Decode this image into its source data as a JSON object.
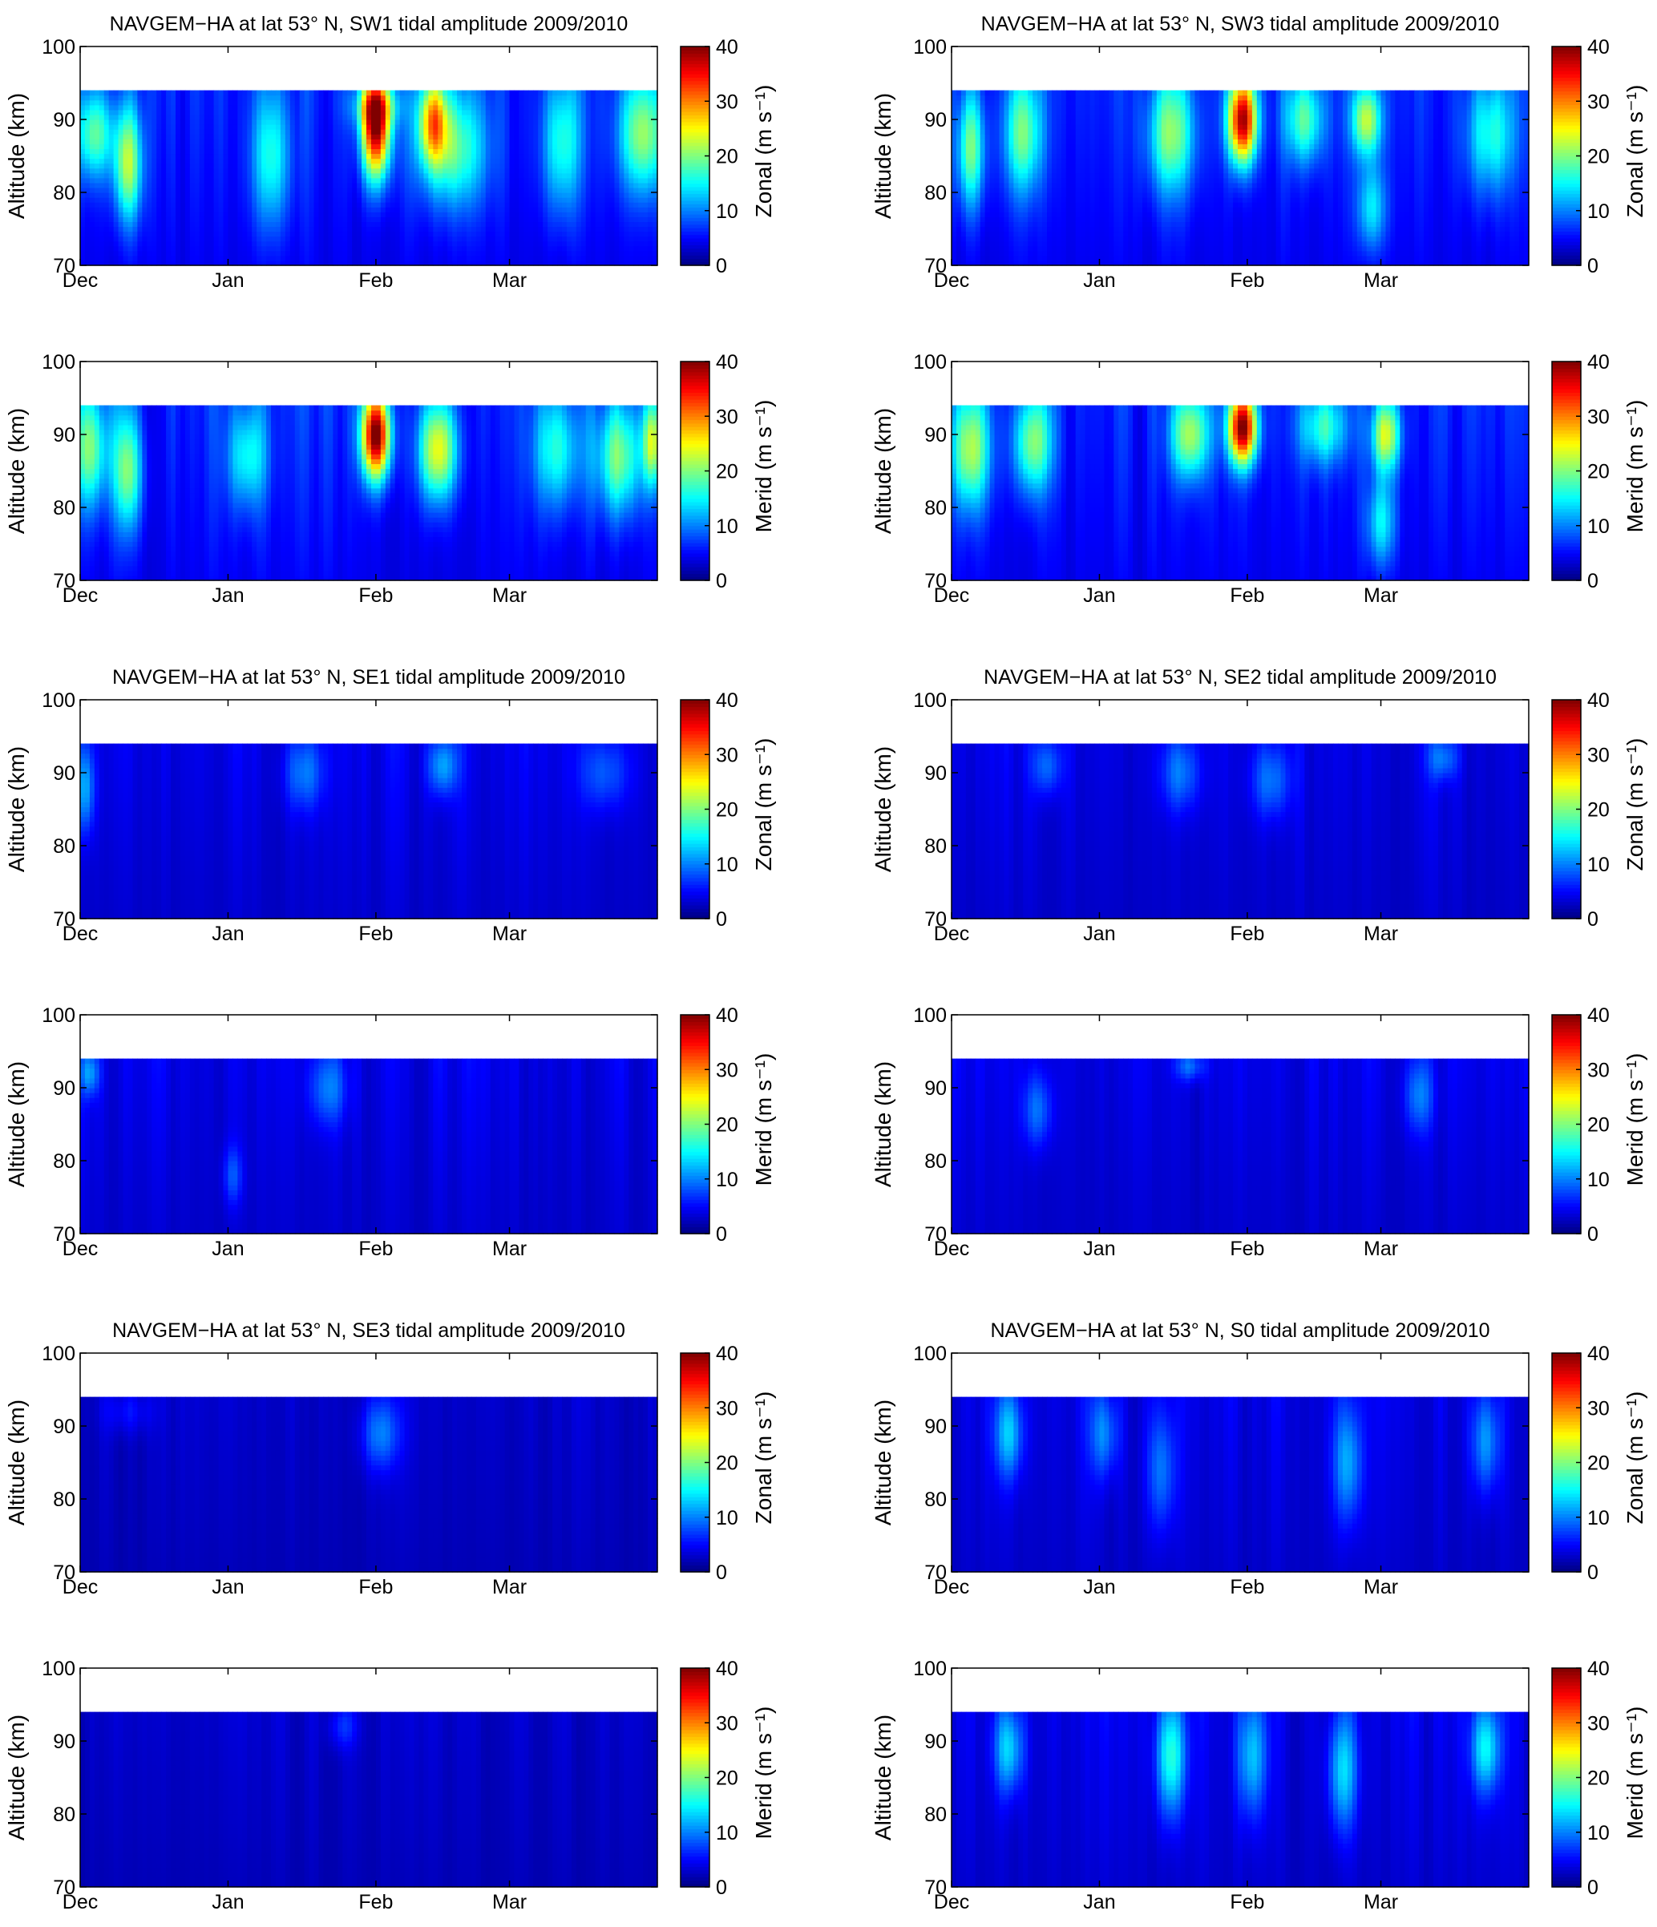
{
  "figure": {
    "colormap": "jet",
    "background": "#ffffff"
  },
  "chart_data": [
    {
      "type": "heatmap",
      "title": "NAVGEM−HA at lat 53° N, SW1 tidal amplitude 2009/2010",
      "ylabel": "Altitude  (km)",
      "colorbar_label": "Zonal  (m s⁻¹)",
      "x_ticks": [
        "Dec",
        "Jan",
        "Feb",
        "Mar"
      ],
      "y_ticks": [
        "70",
        "80",
        "90",
        "100"
      ],
      "ylim": [
        70,
        100
      ],
      "data_top_km": 94,
      "colorbar_ticks": [
        "0",
        "10",
        "20",
        "30",
        "40"
      ],
      "clim": [
        0,
        40
      ],
      "base_amplitude": 6,
      "peaks": [
        {
          "day": 10,
          "alt_km": 84,
          "amp": 17,
          "width_days": 3,
          "height_km": 8
        },
        {
          "day": 3,
          "alt_km": 88,
          "amp": 13,
          "width_days": 4,
          "height_km": 6
        },
        {
          "day": 40,
          "alt_km": 85,
          "amp": 11,
          "width_days": 4,
          "height_km": 10
        },
        {
          "day": 62,
          "alt_km": 89,
          "amp": 34,
          "width_days": 3,
          "height_km": 7
        },
        {
          "day": 62,
          "alt_km": 92,
          "amp": 10,
          "width_days": 5,
          "height_km": 3
        },
        {
          "day": 74,
          "alt_km": 90,
          "amp": 20,
          "width_days": 3,
          "height_km": 6
        },
        {
          "day": 78,
          "alt_km": 86,
          "amp": 13,
          "width_days": 7,
          "height_km": 8
        },
        {
          "day": 101,
          "alt_km": 87,
          "amp": 12,
          "width_days": 4,
          "height_km": 10
        },
        {
          "day": 118,
          "alt_km": 88,
          "amp": 15,
          "width_days": 5,
          "height_km": 8
        }
      ]
    },
    {
      "type": "heatmap",
      "title": "NAVGEM−HA at lat 53° N, SW3 tidal amplitude 2009/2010",
      "ylabel": "Altitude  (km)",
      "colorbar_label": "Zonal  (m s⁻¹)",
      "x_ticks": [
        "Dec",
        "Jan",
        "Feb",
        "Mar"
      ],
      "y_ticks": [
        "70",
        "80",
        "90",
        "100"
      ],
      "ylim": [
        70,
        100
      ],
      "data_top_km": 94,
      "colorbar_ticks": [
        "0",
        "10",
        "20",
        "30",
        "40"
      ],
      "clim": [
        0,
        40
      ],
      "base_amplitude": 6,
      "peaks": [
        {
          "day": 4,
          "alt_km": 86,
          "amp": 14,
          "width_days": 3,
          "height_km": 8
        },
        {
          "day": 15,
          "alt_km": 88,
          "amp": 13,
          "width_days": 4,
          "height_km": 8
        },
        {
          "day": 46,
          "alt_km": 88,
          "amp": 14,
          "width_days": 5,
          "height_km": 8
        },
        {
          "day": 61,
          "alt_km": 90,
          "amp": 34,
          "width_days": 3,
          "height_km": 6
        },
        {
          "day": 74,
          "alt_km": 90,
          "amp": 13,
          "width_days": 4,
          "height_km": 6
        },
        {
          "day": 87,
          "alt_km": 90,
          "amp": 18,
          "width_days": 3,
          "height_km": 5
        },
        {
          "day": 88,
          "alt_km": 78,
          "amp": 10,
          "width_days": 3,
          "height_km": 6
        },
        {
          "day": 113,
          "alt_km": 88,
          "amp": 11,
          "width_days": 5,
          "height_km": 8
        }
      ]
    },
    {
      "type": "heatmap",
      "title": "",
      "ylabel": "Altitude  (km)",
      "colorbar_label": "Merid  (m s⁻¹)",
      "x_ticks": [
        "Dec",
        "Jan",
        "Feb",
        "Mar"
      ],
      "y_ticks": [
        "70",
        "80",
        "90",
        "100"
      ],
      "ylim": [
        70,
        100
      ],
      "data_top_km": 94,
      "colorbar_ticks": [
        "0",
        "10",
        "20",
        "30",
        "40"
      ],
      "clim": [
        0,
        40
      ],
      "base_amplitude": 6,
      "peaks": [
        {
          "day": 2,
          "alt_km": 88,
          "amp": 14,
          "width_days": 4,
          "height_km": 8
        },
        {
          "day": 10,
          "alt_km": 85,
          "amp": 14,
          "width_days": 3,
          "height_km": 8
        },
        {
          "day": 35,
          "alt_km": 87,
          "amp": 10,
          "width_days": 4,
          "height_km": 7
        },
        {
          "day": 62,
          "alt_km": 90,
          "amp": 36,
          "width_days": 3,
          "height_km": 6
        },
        {
          "day": 75,
          "alt_km": 88,
          "amp": 20,
          "width_days": 4,
          "height_km": 7
        },
        {
          "day": 100,
          "alt_km": 88,
          "amp": 11,
          "width_days": 5,
          "height_km": 8
        },
        {
          "day": 113,
          "alt_km": 87,
          "amp": 15,
          "width_days": 5,
          "height_km": 8
        },
        {
          "day": 120,
          "alt_km": 89,
          "amp": 16,
          "width_days": 2,
          "height_km": 6
        }
      ]
    },
    {
      "type": "heatmap",
      "title": "",
      "ylabel": "Altitude  (km)",
      "colorbar_label": "Merid  (m s⁻¹)",
      "x_ticks": [
        "Dec",
        "Jan",
        "Feb",
        "Mar"
      ],
      "y_ticks": [
        "70",
        "80",
        "90",
        "100"
      ],
      "ylim": [
        70,
        100
      ],
      "data_top_km": 94,
      "colorbar_ticks": [
        "0",
        "10",
        "20",
        "30",
        "40"
      ],
      "clim": [
        0,
        40
      ],
      "base_amplitude": 6,
      "peaks": [
        {
          "day": 4,
          "alt_km": 88,
          "amp": 16,
          "width_days": 4,
          "height_km": 8
        },
        {
          "day": 17,
          "alt_km": 89,
          "amp": 15,
          "width_days": 4,
          "height_km": 7
        },
        {
          "day": 50,
          "alt_km": 90,
          "amp": 16,
          "width_days": 4,
          "height_km": 6
        },
        {
          "day": 61,
          "alt_km": 91,
          "amp": 34,
          "width_days": 3,
          "height_km": 5
        },
        {
          "day": 78,
          "alt_km": 91,
          "amp": 11,
          "width_days": 5,
          "height_km": 5
        },
        {
          "day": 91,
          "alt_km": 90,
          "amp": 18,
          "width_days": 3,
          "height_km": 5
        },
        {
          "day": 90,
          "alt_km": 78,
          "amp": 10,
          "width_days": 3,
          "height_km": 6
        }
      ]
    },
    {
      "type": "heatmap",
      "title": "NAVGEM−HA at lat 53° N, SE1 tidal amplitude 2009/2010",
      "ylabel": "Altitude  (km)",
      "colorbar_label": "Zonal  (m s⁻¹)",
      "x_ticks": [
        "Dec",
        "Jan",
        "Feb",
        "Mar"
      ],
      "y_ticks": [
        "70",
        "80",
        "90",
        "100"
      ],
      "ylim": [
        70,
        100
      ],
      "data_top_km": 94,
      "colorbar_ticks": [
        "0",
        "10",
        "20",
        "30",
        "40"
      ],
      "clim": [
        0,
        40
      ],
      "base_amplitude": 4,
      "peaks": [
        {
          "day": 1,
          "alt_km": 88,
          "amp": 8,
          "width_days": 2,
          "height_km": 6
        },
        {
          "day": 47,
          "alt_km": 90,
          "amp": 6,
          "width_days": 4,
          "height_km": 5
        },
        {
          "day": 76,
          "alt_km": 91,
          "amp": 8,
          "width_days": 3,
          "height_km": 4
        },
        {
          "day": 110,
          "alt_km": 90,
          "amp": 5,
          "width_days": 5,
          "height_km": 5
        }
      ]
    },
    {
      "type": "heatmap",
      "title": "NAVGEM−HA at lat 53° N, SE2 tidal amplitude 2009/2010",
      "ylabel": "Altitude  (km)",
      "colorbar_label": "Zonal  (m s⁻¹)",
      "x_ticks": [
        "Dec",
        "Jan",
        "Feb",
        "Mar"
      ],
      "y_ticks": [
        "70",
        "80",
        "90",
        "100"
      ],
      "ylim": [
        70,
        100
      ],
      "data_top_km": 94,
      "colorbar_ticks": [
        "0",
        "10",
        "20",
        "30",
        "40"
      ],
      "clim": [
        0,
        40
      ],
      "base_amplitude": 4,
      "peaks": [
        {
          "day": 20,
          "alt_km": 91,
          "amp": 6,
          "width_days": 3,
          "height_km": 4
        },
        {
          "day": 48,
          "alt_km": 90,
          "amp": 6,
          "width_days": 4,
          "height_km": 5
        },
        {
          "day": 67,
          "alt_km": 89,
          "amp": 6,
          "width_days": 4,
          "height_km": 5
        },
        {
          "day": 103,
          "alt_km": 92,
          "amp": 6,
          "width_days": 3,
          "height_km": 3
        }
      ]
    },
    {
      "type": "heatmap",
      "title": "",
      "ylabel": "Altitude  (km)",
      "colorbar_label": "Merid  (m s⁻¹)",
      "x_ticks": [
        "Dec",
        "Jan",
        "Feb",
        "Mar"
      ],
      "y_ticks": [
        "70",
        "80",
        "90",
        "100"
      ],
      "ylim": [
        70,
        100
      ],
      "data_top_km": 94,
      "colorbar_ticks": [
        "0",
        "10",
        "20",
        "30",
        "40"
      ],
      "clim": [
        0,
        40
      ],
      "base_amplitude": 4,
      "peaks": [
        {
          "day": 2,
          "alt_km": 92,
          "amp": 7,
          "width_days": 2,
          "height_km": 3
        },
        {
          "day": 32,
          "alt_km": 78,
          "amp": 5,
          "width_days": 2,
          "height_km": 4
        },
        {
          "day": 52,
          "alt_km": 90,
          "amp": 6,
          "width_days": 4,
          "height_km": 5
        }
      ]
    },
    {
      "type": "heatmap",
      "title": "",
      "ylabel": "Altitude  (km)",
      "colorbar_label": "Merid  (m s⁻¹)",
      "x_ticks": [
        "Dec",
        "Jan",
        "Feb",
        "Mar"
      ],
      "y_ticks": [
        "70",
        "80",
        "90",
        "100"
      ],
      "ylim": [
        70,
        100
      ],
      "data_top_km": 94,
      "colorbar_ticks": [
        "0",
        "10",
        "20",
        "30",
        "40"
      ],
      "clim": [
        0,
        40
      ],
      "base_amplitude": 4,
      "peaks": [
        {
          "day": 18,
          "alt_km": 87,
          "amp": 6,
          "width_days": 3,
          "height_km": 5
        },
        {
          "day": 50,
          "alt_km": 93,
          "amp": 6,
          "width_days": 3,
          "height_km": 2
        },
        {
          "day": 98,
          "alt_km": 89,
          "amp": 6,
          "width_days": 3,
          "height_km": 5
        }
      ]
    },
    {
      "type": "heatmap",
      "title": "NAVGEM−HA at lat 53° N, SE3 tidal amplitude 2009/2010",
      "ylabel": "Altitude  (km)",
      "colorbar_label": "Zonal  (m s⁻¹)",
      "x_ticks": [
        "Dec",
        "Jan",
        "Feb",
        "Mar"
      ],
      "y_ticks": [
        "70",
        "80",
        "90",
        "100"
      ],
      "ylim": [
        70,
        100
      ],
      "data_top_km": 94,
      "colorbar_ticks": [
        "0",
        "10",
        "20",
        "30",
        "40"
      ],
      "clim": [
        0,
        40
      ],
      "base_amplitude": 3,
      "peaks": [
        {
          "day": 63,
          "alt_km": 89,
          "amp": 7,
          "width_days": 4,
          "height_km": 5
        },
        {
          "day": 10,
          "alt_km": 92,
          "amp": 3,
          "width_days": 5,
          "height_km": 3
        }
      ]
    },
    {
      "type": "heatmap",
      "title": "NAVGEM−HA at lat 53° N, S0 tidal amplitude 2009/2010",
      "ylabel": "Altitude  (km)",
      "colorbar_label": "Zonal  (m s⁻¹)",
      "x_ticks": [
        "Dec",
        "Jan",
        "Feb",
        "Mar"
      ],
      "y_ticks": [
        "70",
        "80",
        "90",
        "100"
      ],
      "ylim": [
        70,
        100
      ],
      "data_top_km": 94,
      "colorbar_ticks": [
        "0",
        "10",
        "20",
        "30",
        "40"
      ],
      "clim": [
        0,
        40
      ],
      "base_amplitude": 4,
      "peaks": [
        {
          "day": 12,
          "alt_km": 89,
          "amp": 9,
          "width_days": 3,
          "height_km": 6
        },
        {
          "day": 32,
          "alt_km": 89,
          "amp": 7,
          "width_days": 3,
          "height_km": 6
        },
        {
          "day": 44,
          "alt_km": 84,
          "amp": 6,
          "width_days": 3,
          "height_km": 8
        },
        {
          "day": 83,
          "alt_km": 85,
          "amp": 8,
          "width_days": 3,
          "height_km": 8
        },
        {
          "day": 112,
          "alt_km": 88,
          "amp": 8,
          "width_days": 3,
          "height_km": 7
        }
      ]
    },
    {
      "type": "heatmap",
      "title": "",
      "ylabel": "Altitude  (km)",
      "colorbar_label": "Merid  (m s⁻¹)",
      "x_ticks": [
        "Dec",
        "Jan",
        "Feb",
        "Mar"
      ],
      "y_ticks": [
        "70",
        "80",
        "90",
        "100"
      ],
      "ylim": [
        70,
        100
      ],
      "data_top_km": 94,
      "colorbar_ticks": [
        "0",
        "10",
        "20",
        "30",
        "40"
      ],
      "clim": [
        0,
        40
      ],
      "base_amplitude": 3,
      "peaks": [
        {
          "day": 55,
          "alt_km": 92,
          "amp": 4,
          "width_days": 3,
          "height_km": 3
        }
      ]
    },
    {
      "type": "heatmap",
      "title": "",
      "ylabel": "Altitude  (km)",
      "colorbar_label": "Merid  (m s⁻¹)",
      "x_ticks": [
        "Dec",
        "Jan",
        "Feb",
        "Mar"
      ],
      "y_ticks": [
        "70",
        "80",
        "90",
        "100"
      ],
      "ylim": [
        70,
        100
      ],
      "data_top_km": 94,
      "colorbar_ticks": [
        "0",
        "10",
        "20",
        "30",
        "40"
      ],
      "clim": [
        0,
        40
      ],
      "base_amplitude": 4,
      "peaks": [
        {
          "day": 12,
          "alt_km": 89,
          "amp": 10,
          "width_days": 3,
          "height_km": 6
        },
        {
          "day": 46,
          "alt_km": 88,
          "amp": 13,
          "width_days": 3,
          "height_km": 8
        },
        {
          "day": 63,
          "alt_km": 88,
          "amp": 9,
          "width_days": 3,
          "height_km": 8
        },
        {
          "day": 82,
          "alt_km": 86,
          "amp": 10,
          "width_days": 3,
          "height_km": 8
        },
        {
          "day": 112,
          "alt_km": 89,
          "amp": 11,
          "width_days": 3,
          "height_km": 6
        }
      ]
    }
  ]
}
